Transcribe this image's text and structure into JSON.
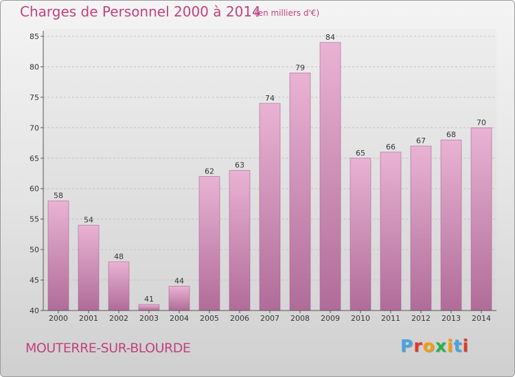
{
  "title": "Charges de Personnel 2000 à 2014",
  "subtitle": "(en milliers d'€)",
  "place": "MOUTERRE-SUR-BLOURDE",
  "logo": {
    "text": "Proxiti",
    "colors": [
      "#4aa3df",
      "#e0392b",
      "#f39c12",
      "#2bb24c",
      "#f39c12",
      "#4aa3df",
      "#e0392b"
    ]
  },
  "chart_data": {
    "type": "bar",
    "categories": [
      "2000",
      "2001",
      "2002",
      "2003",
      "2004",
      "2005",
      "2006",
      "2007",
      "2008",
      "2009",
      "2010",
      "2011",
      "2012",
      "2013",
      "2014"
    ],
    "values": [
      58,
      54,
      48,
      41,
      44,
      62,
      63,
      74,
      79,
      84,
      65,
      66,
      67,
      68,
      70
    ],
    "title": "Charges de Personnel 2000 à 2014",
    "subtitle": "(en milliers d'€)",
    "xlabel": "",
    "ylabel": "",
    "ylim": [
      40,
      85
    ],
    "yticks": [
      40,
      45,
      50,
      55,
      60,
      65,
      70,
      75,
      80,
      85
    ],
    "grid": true,
    "bar_color_top": "#e9b3d3",
    "bar_color_bottom": "#b06c99"
  }
}
